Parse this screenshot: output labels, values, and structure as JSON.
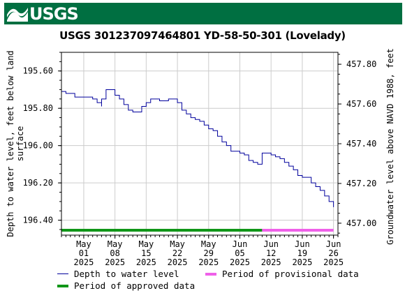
{
  "header": {
    "logo_text": "USGS",
    "brand_color": "#006f41"
  },
  "chart_data": {
    "type": "line",
    "title": "USGS 301237097464801 YD-58-50-301 (Lovelady)",
    "ylabel_left": "Depth to water level, feet below land surface",
    "ylabel_right": "Groundwater level above NAVD 1988, feet",
    "y_left": {
      "min": 195.5,
      "max": 196.48,
      "inverted": true,
      "ticks": [
        "195.60",
        "195.80",
        "196.00",
        "196.20",
        "196.40"
      ]
    },
    "y_right": {
      "min": 456.94,
      "max": 457.86,
      "ticks": [
        "457.80",
        "457.60",
        "457.40",
        "457.20",
        "457.00"
      ]
    },
    "x_range": [
      "2025-04-26",
      "2025-06-27"
    ],
    "x_ticks": [
      {
        "date": "2025-05-01",
        "label": [
          "May",
          "01",
          "2025"
        ]
      },
      {
        "date": "2025-05-08",
        "label": [
          "May",
          "08",
          "2025"
        ]
      },
      {
        "date": "2025-05-15",
        "label": [
          "May",
          "15",
          "2025"
        ]
      },
      {
        "date": "2025-05-22",
        "label": [
          "May",
          "22",
          "2025"
        ]
      },
      {
        "date": "2025-05-29",
        "label": [
          "May",
          "29",
          "2025"
        ]
      },
      {
        "date": "2025-06-05",
        "label": [
          "Jun",
          "05",
          "2025"
        ]
      },
      {
        "date": "2025-06-12",
        "label": [
          "Jun",
          "12",
          "2025"
        ]
      },
      {
        "date": "2025-06-19",
        "label": [
          "Jun",
          "19",
          "2025"
        ]
      },
      {
        "date": "2025-06-26",
        "label": [
          "Jun",
          "26",
          "2025"
        ]
      }
    ],
    "grid": true,
    "series": [
      {
        "name": "Depth to water level",
        "color": "#00009c",
        "points": [
          [
            "2025-04-26",
            195.71
          ],
          [
            "2025-04-27",
            195.72
          ],
          [
            "2025-04-28",
            195.72
          ],
          [
            "2025-04-29",
            195.74
          ],
          [
            "2025-04-30",
            195.74
          ],
          [
            "2025-05-01",
            195.74
          ],
          [
            "2025-05-02",
            195.74
          ],
          [
            "2025-05-03",
            195.75
          ],
          [
            "2025-05-04",
            195.77
          ],
          [
            "2025-05-05",
            195.79
          ],
          [
            "2025-05-05",
            195.75
          ],
          [
            "2025-05-06",
            195.74
          ],
          [
            "2025-05-06",
            195.7
          ],
          [
            "2025-05-07",
            195.7
          ],
          [
            "2025-05-08",
            195.73
          ],
          [
            "2025-05-09",
            195.75
          ],
          [
            "2025-05-10",
            195.78
          ],
          [
            "2025-05-11",
            195.81
          ],
          [
            "2025-05-12",
            195.82
          ],
          [
            "2025-05-13",
            195.82
          ],
          [
            "2025-05-14",
            195.79
          ],
          [
            "2025-05-15",
            195.77
          ],
          [
            "2025-05-16",
            195.75
          ],
          [
            "2025-05-17",
            195.75
          ],
          [
            "2025-05-18",
            195.76
          ],
          [
            "2025-05-19",
            195.76
          ],
          [
            "2025-05-20",
            195.75
          ],
          [
            "2025-05-21",
            195.75
          ],
          [
            "2025-05-22",
            195.77
          ],
          [
            "2025-05-23",
            195.81
          ],
          [
            "2025-05-24",
            195.83
          ],
          [
            "2025-05-25",
            195.85
          ],
          [
            "2025-05-26",
            195.86
          ],
          [
            "2025-05-27",
            195.87
          ],
          [
            "2025-05-28",
            195.89
          ],
          [
            "2025-05-29",
            195.91
          ],
          [
            "2025-05-30",
            195.92
          ],
          [
            "2025-05-31",
            195.95
          ],
          [
            "2025-06-01",
            195.98
          ],
          [
            "2025-06-02",
            196.0
          ],
          [
            "2025-06-03",
            196.03
          ],
          [
            "2025-06-04",
            196.03
          ],
          [
            "2025-06-05",
            196.04
          ],
          [
            "2025-06-06",
            196.05
          ],
          [
            "2025-06-07",
            196.08
          ],
          [
            "2025-06-08",
            196.09
          ],
          [
            "2025-06-09",
            196.1
          ],
          [
            "2025-06-10",
            196.1
          ],
          [
            "2025-06-10",
            196.04
          ],
          [
            "2025-06-11",
            196.04
          ],
          [
            "2025-06-12",
            196.05
          ],
          [
            "2025-06-13",
            196.06
          ],
          [
            "2025-06-14",
            196.07
          ],
          [
            "2025-06-15",
            196.09
          ],
          [
            "2025-06-16",
            196.11
          ],
          [
            "2025-06-17",
            196.13
          ],
          [
            "2025-06-18",
            196.16
          ],
          [
            "2025-06-19",
            196.17
          ],
          [
            "2025-06-20",
            196.17
          ],
          [
            "2025-06-21",
            196.2
          ],
          [
            "2025-06-22",
            196.22
          ],
          [
            "2025-06-23",
            196.24
          ],
          [
            "2025-06-24",
            196.27
          ],
          [
            "2025-06-25",
            196.3
          ],
          [
            "2025-06-26",
            196.33
          ]
        ]
      }
    ],
    "periods": [
      {
        "name": "Period of approved data",
        "color": "#109618",
        "start": "2025-04-26",
        "end": "2025-06-10"
      },
      {
        "name": "Period of provisional data",
        "color": "#ef60e9",
        "start": "2025-06-10",
        "end": "2025-06-26"
      }
    ],
    "legend": {
      "position": "bottom",
      "entries": [
        {
          "label": "Depth to water level",
          "color": "#00009c"
        },
        {
          "label": "Period of provisional data",
          "color": "#ef60e9"
        },
        {
          "label": "Period of approved data",
          "color": "#109618"
        }
      ]
    }
  }
}
